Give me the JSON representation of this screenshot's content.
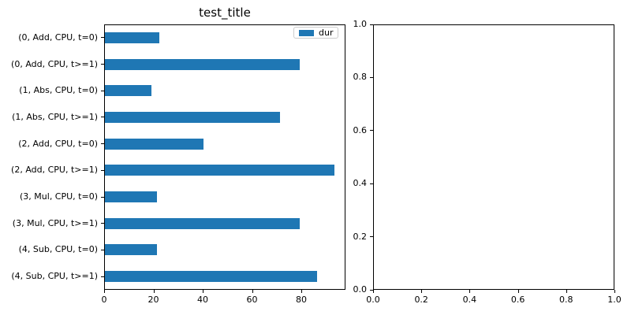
{
  "chart_data": [
    {
      "type": "bar",
      "orientation": "horizontal",
      "title": "test_title",
      "categories": [
        "(0, Add, CPU, t=0)",
        "(0, Add, CPU, t>=1)",
        "(1, Abs, CPU, t=0)",
        "(1, Abs, CPU, t>=1)",
        "(2, Add, CPU, t=0)",
        "(2, Add, CPU, t>=1)",
        "(3, Mul, CPU, t=0)",
        "(3, Mul, CPU, t>=1)",
        "(4, Sub, CPU, t=0)",
        "(4, Sub, CPU, t>=1)"
      ],
      "values": [
        22,
        79,
        19,
        71,
        40,
        93,
        21,
        79,
        21,
        86
      ],
      "series_name": "dur",
      "legend_label": "dur",
      "legend_position": "upper right",
      "bar_color": "#1f77b4",
      "xlim": [
        0,
        97.9
      ],
      "x_ticks": [
        0,
        20,
        40,
        60,
        80
      ],
      "xlabel": "",
      "ylabel": "",
      "grid": false
    },
    {
      "type": "empty",
      "title": "",
      "xlim": [
        0,
        1
      ],
      "ylim": [
        0,
        1
      ],
      "x_ticks": [
        "0.0",
        "0.2",
        "0.4",
        "0.6",
        "0.8",
        "1.0"
      ],
      "y_ticks": [
        "0.0",
        "0.2",
        "0.4",
        "0.6",
        "0.8",
        "1.0"
      ],
      "grid": false
    }
  ]
}
